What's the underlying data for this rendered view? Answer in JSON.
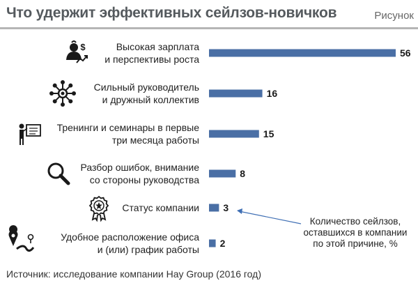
{
  "header": {
    "title": "Что удержит эффективных сейлзов-новичков",
    "figure_label": "Рисунок"
  },
  "source": "Источник: исследование компании Hay Group (2016 год)",
  "annotation": {
    "lines": [
      "Количество сейлзов,",
      "оставшихся в компании",
      "по этой причине, %"
    ]
  },
  "colors": {
    "bar": "#4a6fa5",
    "arrow": "#3f6fb4",
    "icon": "#1a1a1a"
  },
  "chart_data": {
    "type": "bar",
    "orientation": "horizontal",
    "title": "Что удержит эффективных сейлзов-новичков",
    "categories": [
      [
        "Высокая зарплата",
        "и перспективы роста"
      ],
      [
        "Сильный руководитель",
        "и дружный коллектив"
      ],
      [
        "Тренинги и семинары в первые",
        "три месяца работы"
      ],
      [
        "Разбор ошибок, внимание",
        "со стороны руководства"
      ],
      [
        "Статус компании"
      ],
      [
        "Удобное расположение офиса",
        "и (или) график работы"
      ]
    ],
    "values": [
      56,
      16,
      15,
      8,
      3,
      2
    ],
    "icons": [
      "money-person-icon",
      "team-network-icon",
      "presentation-icon",
      "magnifier-icon",
      "award-badge-icon",
      "location-route-icon"
    ],
    "xlim": [
      0,
      56
    ],
    "grid": false,
    "legend": "none"
  }
}
